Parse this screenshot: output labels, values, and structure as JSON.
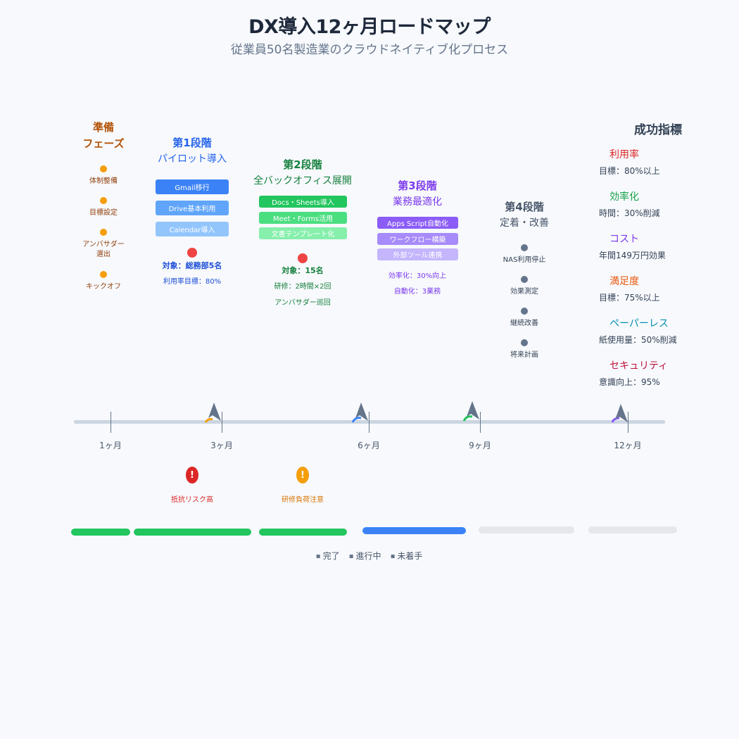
{
  "title": "DX導入12ヶ月ロードマップ",
  "subtitle": "従業員50名製造業のクラウドネイティブ化プロセス",
  "prep": {
    "title_line1": "準備",
    "title_line2": "フェーズ",
    "items": [
      "体制整備",
      "目標設定",
      "アンバサダー\n選出",
      "キックオフ"
    ],
    "color": "#f59e0b"
  },
  "phase1": {
    "title": "第1段階",
    "subtitle": "パイロット導入",
    "tasks": [
      "Gmail移行",
      "Drive基本利用",
      "Calendar導入"
    ],
    "target": "対象：総務部5名",
    "goal": "利用率目標：80%",
    "color": "#2563eb"
  },
  "phase2": {
    "title": "第2段階",
    "subtitle": "全バックオフィス展開",
    "tasks": [
      "Docs・Sheets導入",
      "Meet・Forms活用",
      "文書テンプレート化"
    ],
    "target": "対象：15名",
    "training": "研修：2時間×2回",
    "ambassador": "アンバサダー巡回",
    "color": "#15803d"
  },
  "phase3": {
    "title": "第3段階",
    "subtitle": "業務最適化",
    "tasks": [
      "Apps Script自動化",
      "ワークフロー構築",
      "外部ツール連携"
    ],
    "efficiency": "効率化：30%向上",
    "automation": "自動化：3業務",
    "color": "#7c3aed"
  },
  "phase4": {
    "title": "第4段階",
    "subtitle": "定着・改善",
    "items": [
      "NAS利用停止",
      "効果測定",
      "継続改善",
      "将来計画"
    ],
    "color": "#475569"
  },
  "metrics": {
    "title": "成功指標",
    "items": [
      {
        "name": "利用率",
        "value": "目標：80%以上",
        "color": "#dc2626"
      },
      {
        "name": "効率化",
        "value": "時間：30%削減",
        "color": "#16a34a"
      },
      {
        "name": "コスト",
        "value": "年間149万円効果",
        "color": "#7c3aed"
      },
      {
        "name": "満足度",
        "value": "目標：75%以上",
        "color": "#ea580c"
      },
      {
        "name": "ペーパーレス",
        "value": "紙使用量：50%削減",
        "color": "#0891b2"
      },
      {
        "name": "セキュリティ",
        "value": "意識向上：95%",
        "color": "#be123c"
      }
    ]
  },
  "timeline": {
    "ticks": [
      "1ヶ月",
      "3ヶ月",
      "6ヶ月",
      "9ヶ月",
      "12ヶ月"
    ]
  },
  "risks": [
    {
      "label": "抵抗リスク高",
      "color": "#dc2626"
    },
    {
      "label": "研修負荷注意",
      "color": "#f59e0b"
    }
  ],
  "legend": [
    "完了",
    "進行中",
    "未着手"
  ]
}
